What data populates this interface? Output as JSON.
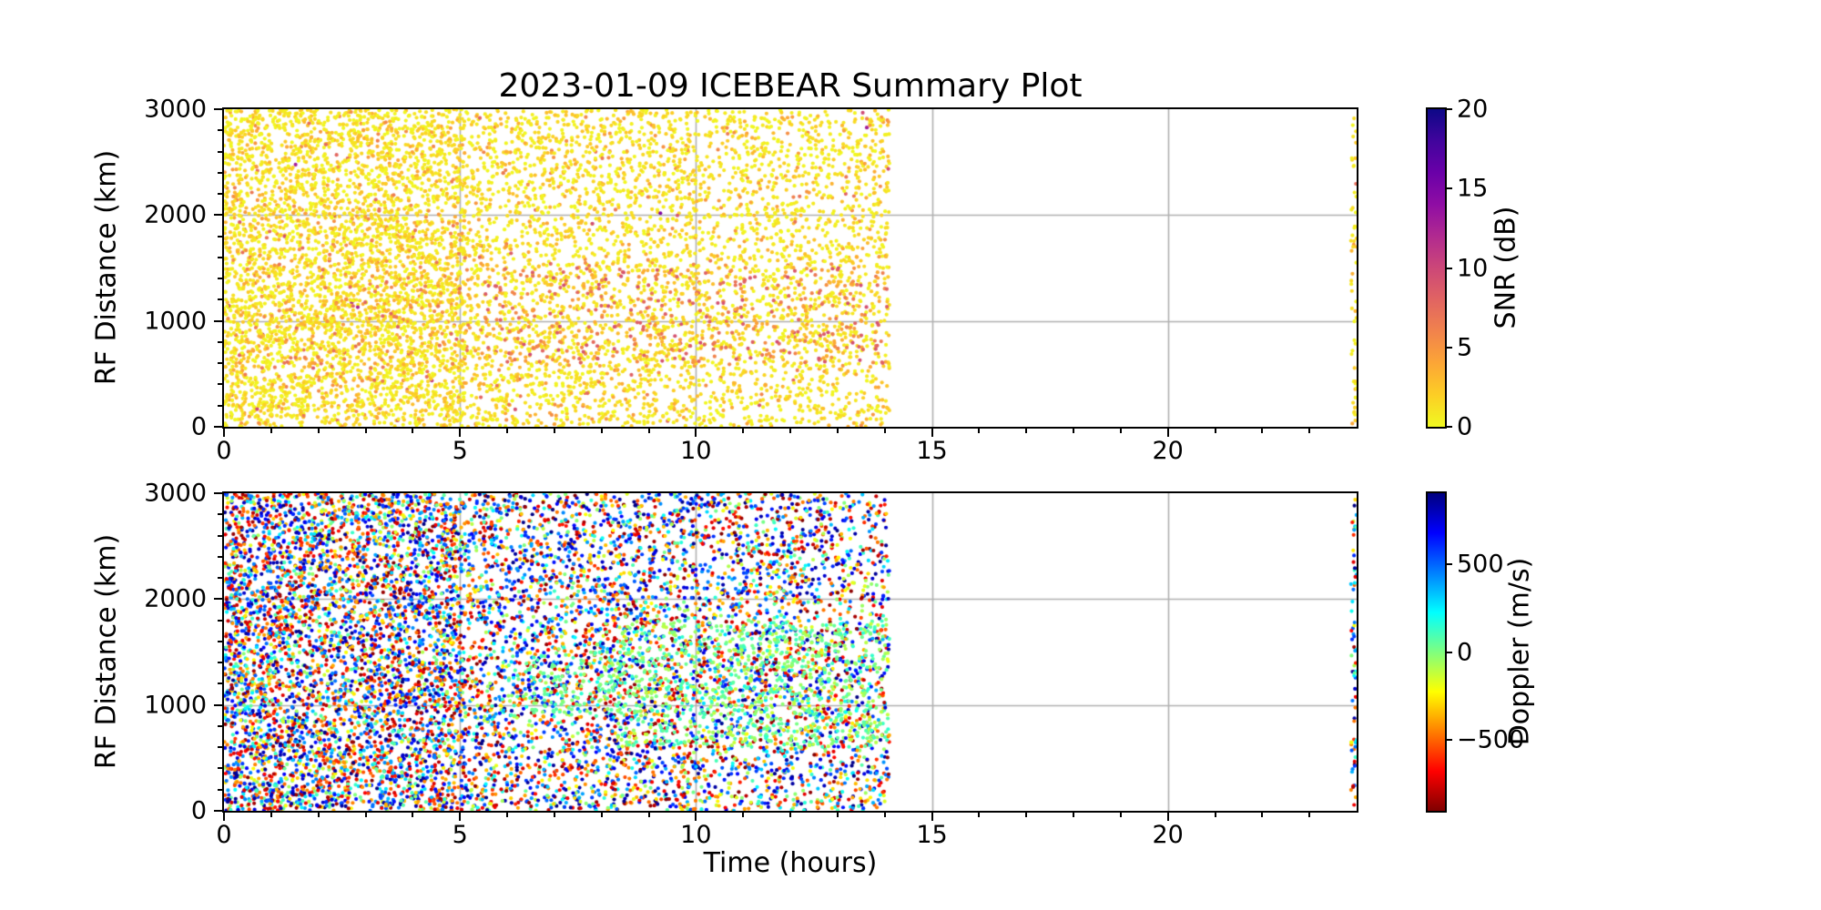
{
  "figure": {
    "background": "#ffffff",
    "spine_color": "#000000",
    "grid_color": "#b0b0b0",
    "text_color": "#000000"
  },
  "chart_data": [
    {
      "type": "scatter",
      "panel": "snr",
      "title": "2023-01-09 ICEBEAR Summary Plot",
      "xlabel": "",
      "ylabel": "RF Distance (km)",
      "xlim": [
        0,
        24
      ],
      "ylim": [
        0,
        3000
      ],
      "xticks": [
        0,
        5,
        10,
        15,
        20
      ],
      "xtick_labels": [
        "0",
        "5",
        "10",
        "15",
        "20"
      ],
      "x_minor_step": 1,
      "yticks": [
        0,
        1000,
        2000,
        3000
      ],
      "ytick_labels": [
        "0",
        "1000",
        "2000",
        "3000"
      ],
      "y_minor_step": 200,
      "grid": true,
      "grid_x_values": [
        5,
        10,
        15,
        20
      ],
      "grid_y_values": [
        1000,
        2000
      ],
      "marker_radius_px": 2.1,
      "colorbar": {
        "label": "SNR (dB)",
        "range": [
          0,
          20
        ],
        "ticks": [
          0,
          5,
          10,
          15,
          20
        ],
        "tick_labels": [
          "0",
          "5",
          "10",
          "15",
          "20"
        ],
        "colormap": "plasma_r",
        "stops_bottom_to_top": [
          [
            0.0,
            "#f0f921"
          ],
          [
            0.1,
            "#fcce25"
          ],
          [
            0.2,
            "#fca636"
          ],
          [
            0.3,
            "#f1834c"
          ],
          [
            0.4,
            "#e16462"
          ],
          [
            0.5,
            "#cc4778"
          ],
          [
            0.6,
            "#b12a90"
          ],
          [
            0.7,
            "#8f0da4"
          ],
          [
            0.8,
            "#6a00a8"
          ],
          [
            0.9,
            "#41049d"
          ],
          [
            1.0,
            "#0d0887"
          ]
        ]
      },
      "data_coverage_hours": [
        0,
        14.1
      ],
      "edge_strip_hours": [
        23.88,
        24
      ],
      "generation": {
        "seed": 1234,
        "bands": [
          {
            "t": [
              0,
              5.1
            ],
            "y": [
              0,
              3000
            ],
            "count": 4300
          },
          {
            "t": [
              5.1,
              10
            ],
            "y": [
              0,
              3000
            ],
            "count": 2400
          },
          {
            "t": [
              10,
              14.1
            ],
            "y": [
              0,
              3000
            ],
            "count": 1750
          },
          {
            "t": [
              23.88,
              24
            ],
            "y": [
              0,
              3000
            ],
            "count": 55
          }
        ],
        "value_distribution": {
          "type": "exponential",
          "scale": 1.5,
          "clip": [
            0,
            20
          ]
        },
        "clusters": [
          {
            "t": [
              5.5,
              14.1
            ],
            "y": [
              600,
              1500
            ],
            "count": 380,
            "value": [
              3.5,
              9.5
            ]
          },
          {
            "t": [
              0.3,
              5.5
            ],
            "y": [
              400,
              1700
            ],
            "count": 130,
            "value": [
              3,
              8
            ]
          }
        ]
      }
    },
    {
      "type": "scatter",
      "panel": "doppler",
      "title": "",
      "xlabel": "Time (hours)",
      "ylabel": "RF Distance (km)",
      "xlim": [
        0,
        24
      ],
      "ylim": [
        0,
        3000
      ],
      "xticks": [
        0,
        5,
        10,
        15,
        20
      ],
      "xtick_labels": [
        "0",
        "5",
        "10",
        "15",
        "20"
      ],
      "x_minor_step": 1,
      "yticks": [
        0,
        1000,
        2000,
        3000
      ],
      "ytick_labels": [
        "0",
        "1000",
        "2000",
        "3000"
      ],
      "y_minor_step": 200,
      "grid": true,
      "grid_x_values": [
        5,
        10,
        15,
        20
      ],
      "grid_y_values": [
        1000,
        2000
      ],
      "marker_radius_px": 2.1,
      "colorbar": {
        "label": "Doppler (m/s)",
        "range": [
          -900,
          900
        ],
        "ticks": [
          -500,
          0,
          500
        ],
        "tick_labels": [
          "−500",
          "0",
          "500"
        ],
        "colormap": "jet_r",
        "stops_bottom_to_top": [
          [
            0.0,
            "#7f0000"
          ],
          [
            0.125,
            "#ff0000"
          ],
          [
            0.25,
            "#ff7f00"
          ],
          [
            0.375,
            "#ffff00"
          ],
          [
            0.5,
            "#7fff7f"
          ],
          [
            0.625,
            "#00ffff"
          ],
          [
            0.75,
            "#007fff"
          ],
          [
            0.875,
            "#0000ff"
          ],
          [
            1.0,
            "#00007f"
          ]
        ]
      },
      "data_coverage_hours": [
        0,
        14.1
      ],
      "edge_strip_hours": [
        23.88,
        24
      ],
      "generation": {
        "seed": 5678,
        "bands": [
          {
            "t": [
              0,
              5.1
            ],
            "y": [
              0,
              3000
            ],
            "count": 4700
          },
          {
            "t": [
              5.1,
              10
            ],
            "y": [
              0,
              3000
            ],
            "count": 2800
          },
          {
            "t": [
              10,
              14.1
            ],
            "y": [
              0,
              3000
            ],
            "count": 2050
          },
          {
            "t": [
              23.88,
              24
            ],
            "y": [
              0,
              3000
            ],
            "count": 70
          }
        ],
        "value_distribution": {
          "type": "bimodal",
          "range": [
            -900,
            900
          ],
          "extreme_fraction": 0.72,
          "extreme_min_abs": 360
        },
        "clusters": [
          {
            "t": [
              8.3,
              14.1
            ],
            "y": [
              600,
              1800
            ],
            "count": 780,
            "value": [
              -130,
              150
            ]
          },
          {
            "t": [
              6,
              9
            ],
            "y": [
              900,
              1500
            ],
            "count": 150,
            "value": [
              -80,
              120
            ]
          }
        ]
      }
    }
  ]
}
